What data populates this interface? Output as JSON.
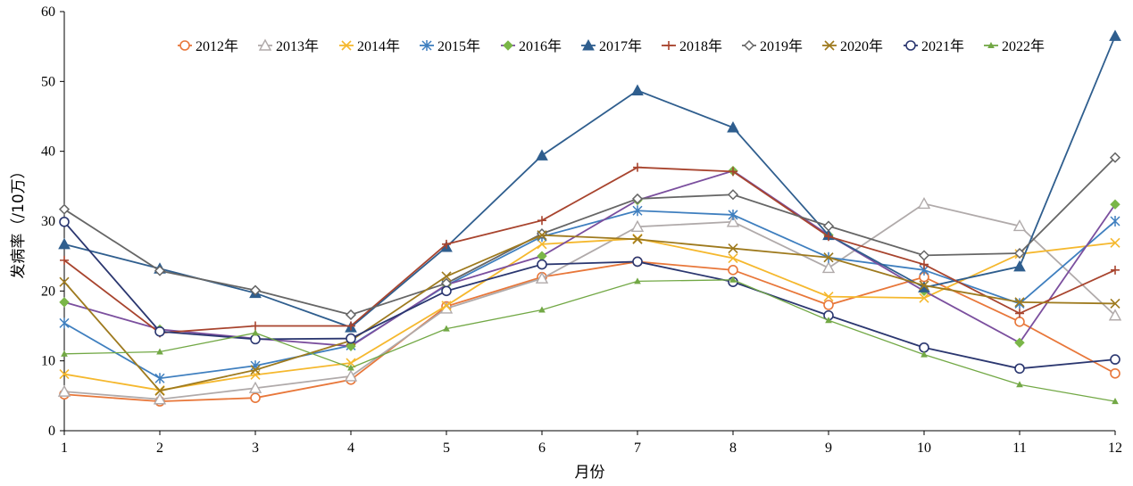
{
  "chart_data": {
    "type": "line",
    "title": "",
    "xlabel": "月份",
    "ylabel": "发病率（/10万）",
    "xlim": [
      1,
      12
    ],
    "ylim": [
      0,
      60
    ],
    "y_ticks": [
      0,
      10,
      20,
      30,
      40,
      50,
      60
    ],
    "x_ticks": [
      1,
      2,
      3,
      4,
      5,
      6,
      7,
      8,
      9,
      10,
      11,
      12
    ],
    "grid": false,
    "legend": "top-right",
    "x": [
      1,
      2,
      3,
      4,
      5,
      6,
      7,
      8,
      9,
      10,
      11,
      12
    ],
    "series": [
      {
        "name": "2012年",
        "color": "#E8773A",
        "marker": "circle-open",
        "values": [
          5.2,
          4.2,
          4.7,
          7.3,
          17.8,
          22.0,
          24.2,
          23.0,
          18.0,
          22.0,
          15.6,
          8.2
        ]
      },
      {
        "name": "2013年",
        "color": "#B0AAAA",
        "marker": "triangle-open",
        "values": [
          5.6,
          4.5,
          6.1,
          7.8,
          17.5,
          21.8,
          29.2,
          29.9,
          23.3,
          32.5,
          29.3,
          16.5
        ]
      },
      {
        "name": "2014年",
        "color": "#F5B82E",
        "marker": "x",
        "values": [
          8.1,
          5.8,
          8.0,
          9.7,
          17.9,
          26.7,
          27.5,
          24.7,
          19.2,
          19.0,
          25.3,
          26.9
        ]
      },
      {
        "name": "2015年",
        "color": "#3F7FBF",
        "marker": "star",
        "values": [
          15.4,
          7.5,
          9.3,
          12.2,
          20.8,
          27.8,
          31.5,
          30.9,
          24.8,
          23.0,
          18.2,
          30.0
        ]
      },
      {
        "name": "2016年",
        "color": "#7B4F9E",
        "marker": "diamond-green",
        "values": [
          18.4,
          14.5,
          13.2,
          12.1,
          20.9,
          25.0,
          33.0,
          37.2,
          28.0,
          20.0,
          12.6,
          32.4
        ]
      },
      {
        "name": "2017年",
        "color": "#2F5E8E",
        "marker": "triangle-filled",
        "values": [
          26.7,
          23.2,
          19.7,
          14.8,
          26.3,
          39.4,
          48.7,
          43.4,
          28.0,
          20.5,
          23.5,
          56.5
        ]
      },
      {
        "name": "2018年",
        "color": "#A8442E",
        "marker": "plus",
        "values": [
          24.4,
          14.0,
          15.0,
          15.0,
          26.7,
          30.1,
          37.7,
          37.1,
          27.8,
          23.8,
          16.8,
          23.0
        ]
      },
      {
        "name": "2019年",
        "color": "#666666",
        "marker": "diamond-open",
        "values": [
          31.7,
          22.9,
          20.1,
          16.6,
          21.1,
          28.2,
          33.2,
          33.8,
          29.3,
          25.1,
          25.4,
          39.1
        ]
      },
      {
        "name": "2020年",
        "color": "#9E7A1E",
        "marker": "x",
        "values": [
          21.3,
          5.7,
          8.7,
          12.9,
          22.1,
          28.0,
          27.4,
          26.1,
          24.8,
          20.8,
          18.4,
          18.2
        ]
      },
      {
        "name": "2021年",
        "color": "#2B3770",
        "marker": "circle-open",
        "values": [
          29.9,
          14.2,
          13.1,
          13.2,
          20.0,
          23.8,
          24.2,
          21.3,
          16.5,
          11.9,
          8.9,
          10.2
        ]
      },
      {
        "name": "2022年",
        "color": "#72A845",
        "marker": "small-triangle",
        "values": [
          11.0,
          11.3,
          14.0,
          9.0,
          14.6,
          17.3,
          21.4,
          21.6,
          15.8,
          10.9,
          6.6,
          4.2
        ]
      }
    ]
  }
}
